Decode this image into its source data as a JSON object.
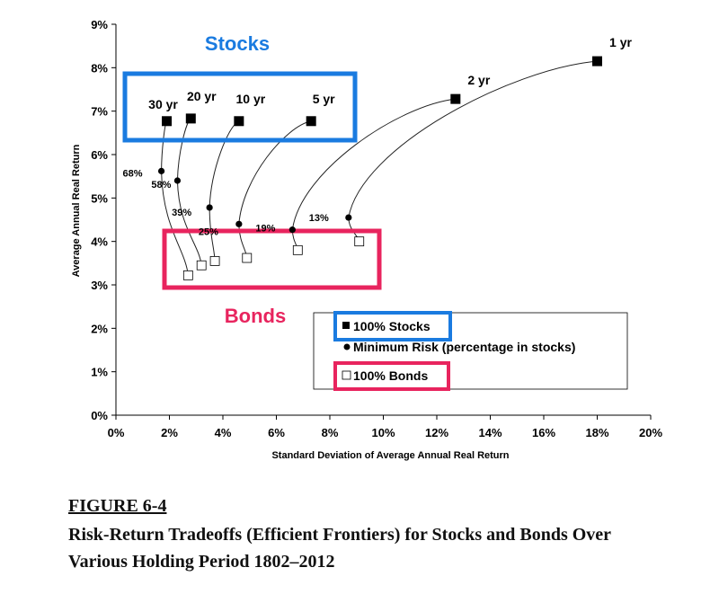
{
  "figure": {
    "number": "FIGURE 6-4",
    "title_line1": "Risk-Return Tradeoffs (Efficient Frontiers) for Stocks and Bonds Over",
    "title_line2": "Various Holding Period 1802–2012"
  },
  "chart_data": {
    "type": "scatter",
    "xlabel": "Standard Deviation of Average Annual Real Return",
    "ylabel": "Average Annual Real Return",
    "xlim": [
      0,
      20
    ],
    "ylim": [
      0,
      9
    ],
    "x_ticks": [
      "0%",
      "2%",
      "4%",
      "6%",
      "8%",
      "10%",
      "12%",
      "14%",
      "16%",
      "18%",
      "20%"
    ],
    "y_ticks": [
      "0%",
      "1%",
      "2%",
      "3%",
      "4%",
      "5%",
      "6%",
      "7%",
      "8%",
      "9%"
    ],
    "grid": false,
    "series": [
      {
        "name": "100% Stocks",
        "marker": "filled-square",
        "points": [
          {
            "label": "1 yr",
            "x": 18.0,
            "y": 8.15
          },
          {
            "label": "2 yr",
            "x": 12.7,
            "y": 7.28
          },
          {
            "label": "5 yr",
            "x": 7.3,
            "y": 6.77
          },
          {
            "label": "10 yr",
            "x": 4.6,
            "y": 6.77
          },
          {
            "label": "20 yr",
            "x": 2.8,
            "y": 6.83
          },
          {
            "label": "30 yr",
            "x": 1.9,
            "y": 6.77
          }
        ]
      },
      {
        "name": "Minimum Risk (percentage in stocks)",
        "marker": "dot",
        "points": [
          {
            "label": "13%",
            "x": 8.7,
            "y": 4.55
          },
          {
            "label": "19%",
            "x": 6.6,
            "y": 4.27
          },
          {
            "label": "25%",
            "x": 4.6,
            "y": 4.4
          },
          {
            "label": "39%",
            "x": 3.5,
            "y": 4.78
          },
          {
            "label": "58%",
            "x": 2.3,
            "y": 5.4
          },
          {
            "label": "68%",
            "x": 1.7,
            "y": 5.62
          }
        ]
      },
      {
        "name": "100% Bonds",
        "marker": "hollow-square",
        "points": [
          {
            "x": 9.1,
            "y": 4.0
          },
          {
            "x": 6.8,
            "y": 3.8
          },
          {
            "x": 4.9,
            "y": 3.62
          },
          {
            "x": 3.7,
            "y": 3.55
          },
          {
            "x": 3.2,
            "y": 3.45
          },
          {
            "x": 2.7,
            "y": 3.22
          }
        ]
      }
    ],
    "annotations": {
      "stocks_label": "Stocks",
      "bonds_label": "Bonds"
    },
    "legend": {
      "placement": "bottom-right",
      "items": [
        "100% Stocks",
        "Minimum Risk (percentage in stocks)",
        "100% Bonds"
      ]
    },
    "colors": {
      "stocks_box": "#1a7be0",
      "bonds_box": "#e8245e",
      "marker": "#000000",
      "curve": "#222222"
    }
  }
}
